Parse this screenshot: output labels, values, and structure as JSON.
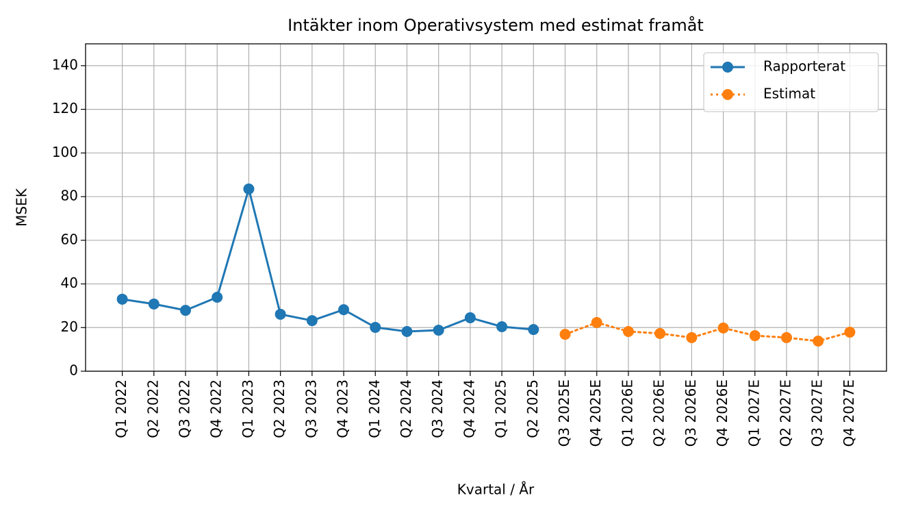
{
  "chart_data": {
    "type": "line",
    "title": "Intäkter inom Operativsystem med estimat framåt",
    "xlabel": "Kvartal / År",
    "ylabel": "MSEK",
    "categories": [
      "Q1 2022",
      "Q2 2022",
      "Q3 2022",
      "Q4 2022",
      "Q1 2023",
      "Q2 2023",
      "Q3 2023",
      "Q4 2023",
      "Q1 2024",
      "Q2 2024",
      "Q3 2024",
      "Q4 2024",
      "Q1 2025",
      "Q2 2025",
      "Q3 2025E",
      "Q4 2025E",
      "Q1 2026E",
      "Q2 2026E",
      "Q3 2026E",
      "Q4 2026E",
      "Q1 2027E",
      "Q2 2027E",
      "Q3 2027E",
      "Q4 2027E"
    ],
    "series": [
      {
        "name": "Rapporterat",
        "color": "#1f77b4",
        "linestyle": "solid",
        "values": [
          33.0,
          30.8,
          27.9,
          33.9,
          83.5,
          26.1,
          23.2,
          28.2,
          20.1,
          18.2,
          18.8,
          24.5,
          20.4,
          19.1,
          null,
          null,
          null,
          null,
          null,
          null,
          null,
          null,
          null,
          null
        ]
      },
      {
        "name": "Estimat",
        "color": "#ff7f0e",
        "linestyle": "dotted",
        "values": [
          null,
          null,
          null,
          null,
          null,
          null,
          null,
          null,
          null,
          null,
          null,
          null,
          null,
          null,
          16.9,
          22.3,
          18.2,
          17.3,
          15.4,
          19.8,
          16.3,
          15.4,
          13.8,
          17.9
        ]
      }
    ],
    "ylim": [
      0,
      150
    ],
    "yticks": [
      0,
      20,
      40,
      60,
      80,
      100,
      120,
      140
    ],
    "grid": true,
    "legend": "upper right"
  }
}
